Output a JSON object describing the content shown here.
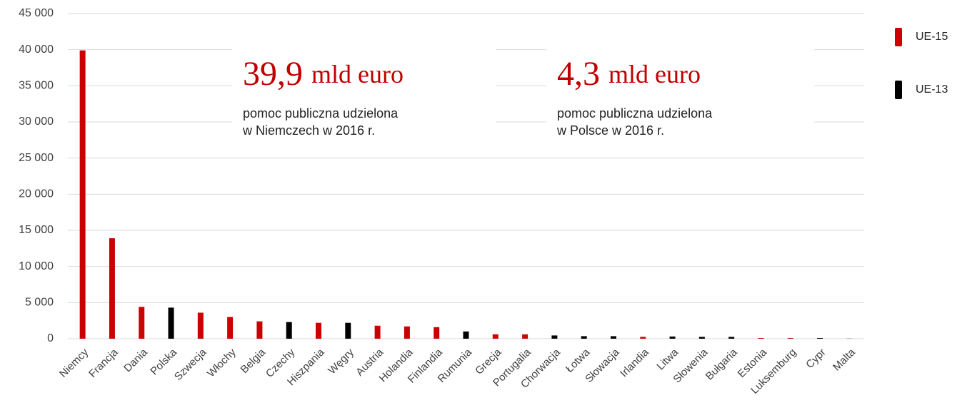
{
  "chart_data": {
    "type": "bar",
    "categories": [
      "Niemcy",
      "Francja",
      "Dania",
      "Polska",
      "Szwecja",
      "Włochy",
      "Belgia",
      "Czechy",
      "Hiszpania",
      "Węgry",
      "Austria",
      "Holandia",
      "Finlandia",
      "Rumunia",
      "Grecja",
      "Portugalia",
      "Chorwacja",
      "Łotwa",
      "Słowacja",
      "Irlandia",
      "Litwa",
      "Słowenia",
      "Bułgaria",
      "Estonia",
      "Luksemburg",
      "Cypr",
      "Malta"
    ],
    "series": [
      {
        "name": "UE-15",
        "color": "#cc0000",
        "values": [
          39900,
          13900,
          4400,
          null,
          3600,
          3000,
          2400,
          null,
          2200,
          null,
          1800,
          1700,
          1600,
          null,
          600,
          600,
          null,
          null,
          null,
          250,
          null,
          null,
          null,
          100,
          100,
          null,
          null
        ]
      },
      {
        "name": "UE-13",
        "color": "#000000",
        "values": [
          null,
          null,
          null,
          4300,
          null,
          null,
          null,
          2300,
          null,
          2200,
          null,
          null,
          null,
          1000,
          null,
          null,
          450,
          350,
          350,
          null,
          300,
          250,
          250,
          null,
          null,
          100,
          20
        ]
      }
    ],
    "ylim": [
      0,
      45000
    ],
    "yticks": [
      0,
      {
        "value": 5000,
        "label": "5 000"
      },
      {
        "value": 10000,
        "label": "10 000"
      },
      {
        "value": 15000,
        "label": "15 000"
      },
      {
        "value": 20000,
        "label": "20 000"
      },
      {
        "value": 25000,
        "label": "25 000"
      },
      {
        "value": 30000,
        "label": "30 000"
      },
      {
        "value": 35000,
        "label": "35 000"
      },
      {
        "value": 40000,
        "label": "40 000"
      },
      {
        "value": 45000,
        "label": "45 000"
      }
    ],
    "grid": true,
    "legend": "right",
    "annotations": [
      {
        "amount": "39,9",
        "unit": "mld euro",
        "lines": [
          "pomoc publiczna udzielona",
          "w Niemczech w 2016 r."
        ]
      },
      {
        "amount": "4,3",
        "unit": "mld euro",
        "lines": [
          "pomoc publiczna udzielona",
          "w Polsce w 2016 r."
        ]
      }
    ]
  }
}
